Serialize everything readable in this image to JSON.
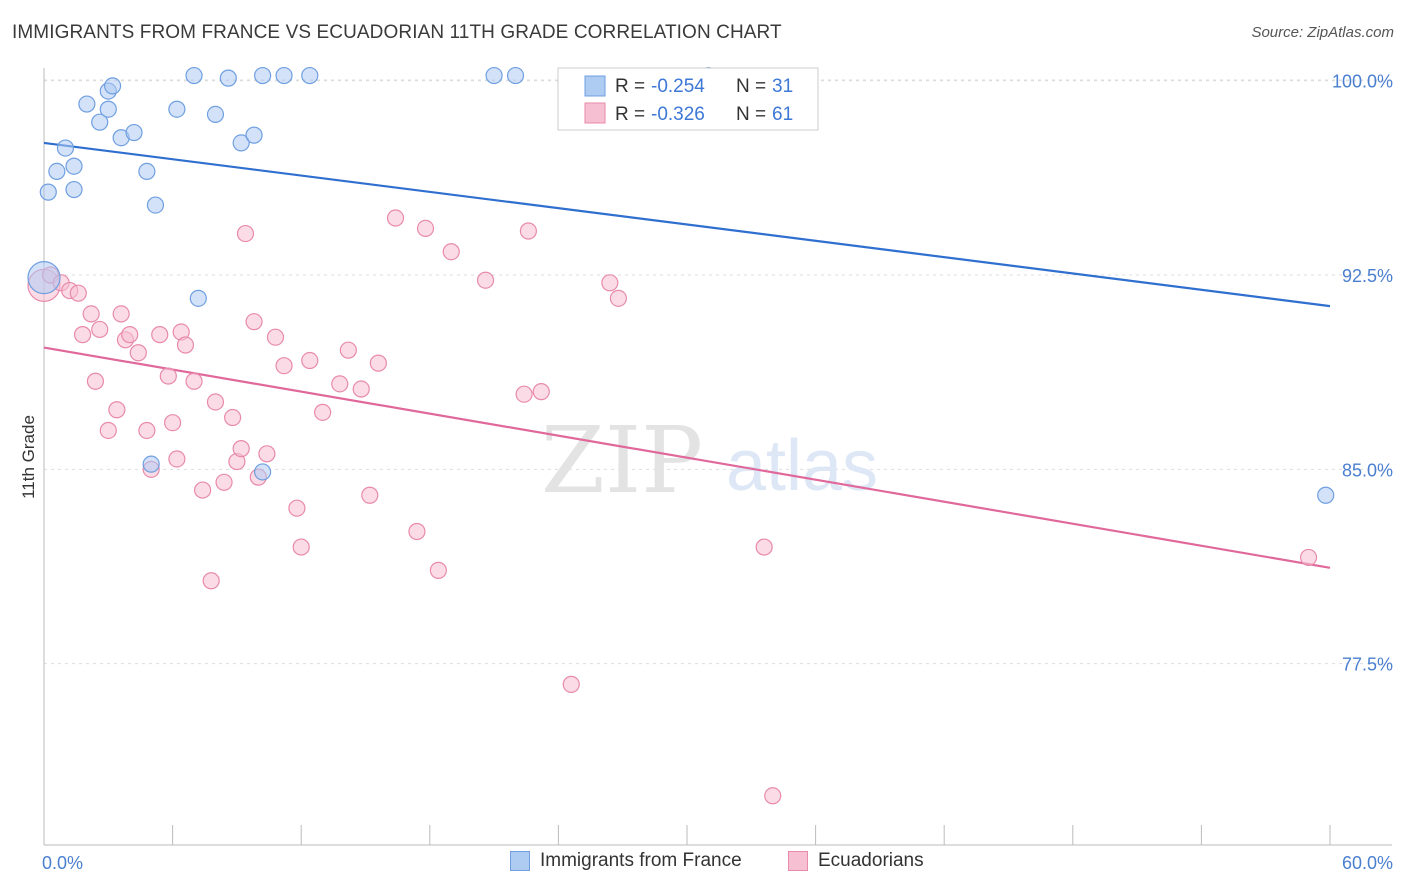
{
  "header": {
    "title": "IMMIGRANTS FROM FRANCE VS ECUADORIAN 11TH GRADE CORRELATION CHART",
    "source": "Source: ZipAtlas.com"
  },
  "watermark": {
    "zip": "ZIP",
    "atlas": "atlas"
  },
  "colors": {
    "blue_fill": "#aecbf2",
    "blue_stroke": "#6f9fe0",
    "blue_line": "#2f6fcf",
    "pink_fill": "#f7c0d2",
    "pink_stroke": "#e88aab",
    "pink_line": "#e0689a",
    "axis_text": "#4a7fd0",
    "grid": "#dddddd"
  },
  "legend_top": [
    {
      "r_label": "R = ",
      "r_value": "-0.254",
      "n_label": "N = ",
      "n_value": "31"
    },
    {
      "r_label": "R = ",
      "r_value": "-0.326",
      "n_label": "N = ",
      "n_value": "61"
    }
  ],
  "chart_data": {
    "type": "scatter",
    "title": "IMMIGRANTS FROM FRANCE VS ECUADORIAN 11TH GRADE CORRELATION CHART",
    "xlabel": "",
    "ylabel": "11th Grade",
    "xlim": [
      0,
      60
    ],
    "ylim": [
      70.5,
      100.8
    ],
    "x_tick_labels": [
      {
        "value": 0,
        "label": "0.0%"
      },
      {
        "value": 60,
        "label": "60.0%"
      }
    ],
    "y_tick_labels": [
      {
        "value": 100.0,
        "label": "100.0%"
      },
      {
        "value": 92.5,
        "label": "92.5%"
      },
      {
        "value": 85.0,
        "label": "85.0%"
      },
      {
        "value": 77.5,
        "label": "77.5%"
      }
    ],
    "series": [
      {
        "name": "Immigrants from France",
        "r": -0.254,
        "n": 31,
        "trend": {
          "x": [
            0,
            60
          ],
          "y": [
            97.6,
            91.3
          ]
        },
        "points": [
          [
            0.0,
            92.4
          ],
          [
            0.2,
            95.7
          ],
          [
            0.6,
            96.5
          ],
          [
            1.0,
            97.4
          ],
          [
            1.4,
            96.7
          ],
          [
            2.0,
            99.1
          ],
          [
            2.6,
            98.4
          ],
          [
            3.0,
            99.6
          ],
          [
            3.2,
            99.8
          ],
          [
            3.6,
            97.8
          ],
          [
            4.2,
            98.0
          ],
          [
            4.8,
            96.5
          ],
          [
            5.2,
            95.2
          ],
          [
            6.2,
            98.9
          ],
          [
            7.0,
            100.2
          ],
          [
            7.2,
            91.6
          ],
          [
            8.0,
            98.7
          ],
          [
            8.6,
            100.1
          ],
          [
            9.2,
            97.6
          ],
          [
            9.8,
            97.9
          ],
          [
            10.2,
            100.2
          ],
          [
            11.2,
            100.2
          ],
          [
            12.4,
            100.2
          ],
          [
            21.0,
            100.2
          ],
          [
            22.0,
            100.2
          ],
          [
            31.0,
            100.2
          ],
          [
            5.0,
            85.2
          ],
          [
            10.2,
            84.9
          ],
          [
            59.8,
            84.0
          ],
          [
            3.0,
            98.9
          ],
          [
            1.4,
            95.8
          ]
        ]
      },
      {
        "name": "Ecuadorians",
        "r": -0.326,
        "n": 61,
        "trend": {
          "x": [
            0,
            60
          ],
          "y": [
            89.7,
            81.2
          ]
        },
        "points": [
          [
            0.0,
            92.1
          ],
          [
            0.3,
            92.5
          ],
          [
            0.8,
            92.2
          ],
          [
            1.2,
            91.9
          ],
          [
            1.6,
            91.8
          ],
          [
            1.8,
            90.2
          ],
          [
            2.2,
            91.0
          ],
          [
            2.4,
            88.4
          ],
          [
            2.6,
            90.4
          ],
          [
            3.0,
            86.5
          ],
          [
            3.4,
            87.3
          ],
          [
            3.6,
            91.0
          ],
          [
            3.8,
            90.0
          ],
          [
            4.0,
            90.2
          ],
          [
            4.4,
            89.5
          ],
          [
            4.8,
            86.5
          ],
          [
            5.0,
            85.0
          ],
          [
            5.4,
            90.2
          ],
          [
            5.8,
            88.6
          ],
          [
            6.0,
            86.8
          ],
          [
            6.2,
            85.4
          ],
          [
            6.4,
            90.3
          ],
          [
            6.6,
            89.8
          ],
          [
            7.0,
            88.4
          ],
          [
            7.4,
            84.2
          ],
          [
            7.8,
            80.7
          ],
          [
            8.0,
            87.6
          ],
          [
            8.4,
            84.5
          ],
          [
            8.8,
            87.0
          ],
          [
            9.0,
            85.3
          ],
          [
            9.2,
            85.8
          ],
          [
            9.8,
            90.7
          ],
          [
            10.0,
            84.7
          ],
          [
            10.4,
            85.6
          ],
          [
            10.8,
            90.1
          ],
          [
            11.2,
            89.0
          ],
          [
            11.8,
            83.5
          ],
          [
            12.0,
            82.0
          ],
          [
            12.4,
            89.2
          ],
          [
            13.0,
            87.2
          ],
          [
            13.8,
            88.3
          ],
          [
            14.2,
            89.6
          ],
          [
            14.8,
            88.1
          ],
          [
            15.2,
            84.0
          ],
          [
            15.6,
            89.1
          ],
          [
            16.4,
            94.7
          ],
          [
            17.4,
            82.6
          ],
          [
            17.8,
            94.3
          ],
          [
            18.4,
            81.1
          ],
          [
            19.0,
            93.4
          ],
          [
            20.6,
            92.3
          ],
          [
            22.4,
            87.9
          ],
          [
            22.6,
            94.2
          ],
          [
            23.2,
            88.0
          ],
          [
            24.6,
            76.7
          ],
          [
            26.4,
            92.2
          ],
          [
            26.8,
            91.6
          ],
          [
            33.6,
            82.0
          ],
          [
            34.0,
            72.4
          ],
          [
            59.0,
            81.6
          ],
          [
            9.4,
            94.1
          ]
        ]
      }
    ]
  },
  "legend_bottom": [
    {
      "label": "Immigrants from France"
    },
    {
      "label": "Ecuadorians"
    }
  ]
}
